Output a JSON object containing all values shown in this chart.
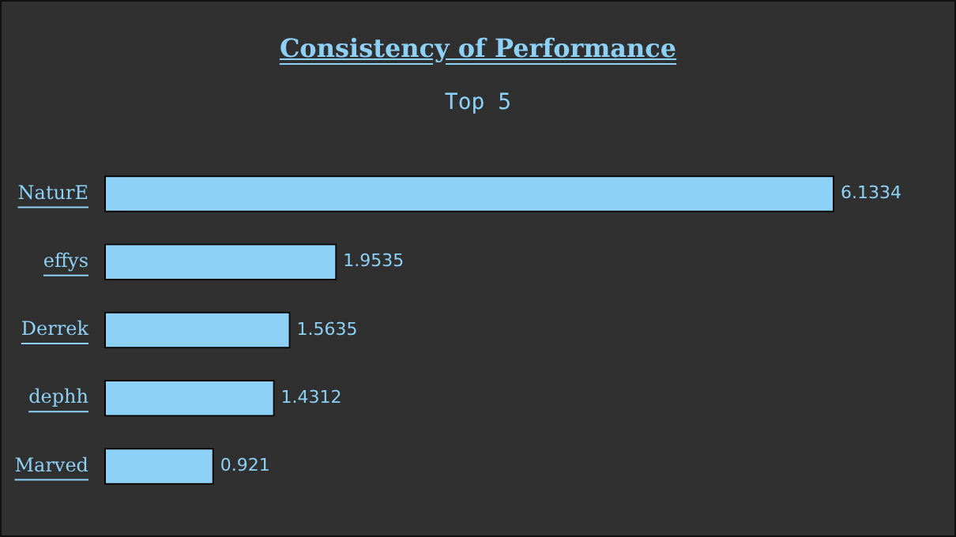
{
  "chart_data": {
    "type": "bar",
    "orientation": "horizontal",
    "title": "Consistency of Performance",
    "subtitle": "Top 5",
    "categories": [
      "NaturE",
      "effys",
      "Derrek",
      "dephh",
      "Marved"
    ],
    "values": [
      6.1334,
      1.9535,
      1.5635,
      1.4312,
      0.921
    ],
    "color": "#8ed1f6",
    "data_labels": true
  }
}
